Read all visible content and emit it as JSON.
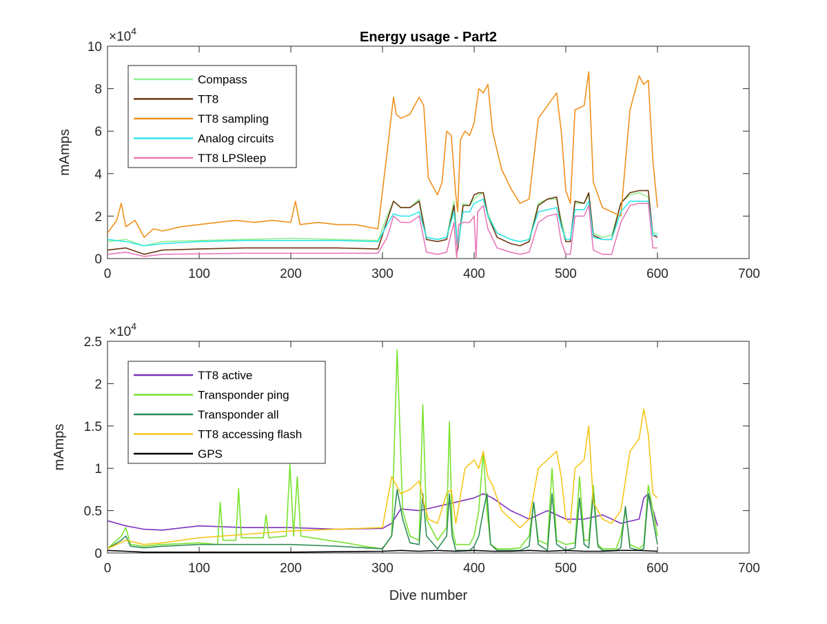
{
  "chart_data": [
    {
      "type": "line",
      "title": "Energy usage - Part2",
      "xlabel": "",
      "ylabel": "mAmps",
      "exponent_label": "×10",
      "exponent_power": "4",
      "xlim": [
        0,
        700
      ],
      "ylim": [
        0,
        100000
      ],
      "x_ticks": [
        "0",
        "100",
        "200",
        "300",
        "400",
        "500",
        "600",
        "700"
      ],
      "y_ticks": [
        "0",
        "2",
        "4",
        "6",
        "8",
        "10"
      ],
      "legend_position": "top-left",
      "series": [
        {
          "name": "Compass",
          "color": "#90ee90",
          "x": [
            0,
            20,
            40,
            60,
            100,
            150,
            200,
            250,
            295,
            305,
            312,
            320,
            330,
            340,
            348,
            360,
            370,
            378,
            382,
            388,
            395,
            400,
            405,
            410,
            415,
            425,
            440,
            450,
            460,
            470,
            480,
            490,
            495,
            500,
            505,
            510,
            520,
            525,
            530,
            540,
            550,
            560,
            570,
            580,
            590,
            595,
            600
          ],
          "y": [
            8000,
            9000,
            6000,
            8000,
            8500,
            9000,
            9500,
            9000,
            8500,
            20000,
            27000,
            24000,
            24000,
            28000,
            10000,
            9000,
            10000,
            27000,
            5000,
            26000,
            25000,
            28000,
            30000,
            31000,
            21000,
            12000,
            9000,
            8000,
            9000,
            26000,
            28000,
            28000,
            18000,
            9000,
            9000,
            26000,
            26000,
            30000,
            12000,
            10000,
            11000,
            26000,
            30000,
            31000,
            29000,
            12000,
            12000
          ]
        },
        {
          "name": "TT8",
          "color": "#6b3510",
          "x": [
            0,
            20,
            40,
            60,
            100,
            150,
            200,
            250,
            295,
            305,
            312,
            320,
            330,
            340,
            348,
            360,
            370,
            378,
            382,
            388,
            395,
            400,
            405,
            410,
            415,
            425,
            440,
            450,
            460,
            470,
            480,
            490,
            495,
            500,
            505,
            510,
            520,
            525,
            530,
            540,
            550,
            560,
            570,
            580,
            590,
            595,
            600
          ],
          "y": [
            4000,
            5000,
            2000,
            4000,
            4500,
            5000,
            5000,
            5000,
            4500,
            18000,
            27000,
            24000,
            24000,
            27000,
            9000,
            8000,
            9000,
            25000,
            4000,
            25000,
            25000,
            30000,
            31000,
            31000,
            20000,
            10000,
            7000,
            6000,
            8000,
            25000,
            28000,
            29000,
            16000,
            8000,
            8000,
            27000,
            26000,
            31000,
            11000,
            9000,
            9000,
            26000,
            31000,
            32000,
            32000,
            11000,
            10000
          ]
        },
        {
          "name": "TT8 sampling",
          "color": "#f0901a",
          "x": [
            0,
            10,
            15,
            20,
            30,
            40,
            50,
            60,
            80,
            100,
            120,
            140,
            160,
            180,
            200,
            205,
            210,
            230,
            250,
            270,
            295,
            305,
            312,
            315,
            320,
            330,
            340,
            345,
            350,
            360,
            365,
            370,
            375,
            380,
            382,
            385,
            390,
            395,
            400,
            405,
            410,
            415,
            420,
            430,
            440,
            450,
            460,
            470,
            480,
            490,
            495,
            500,
            505,
            510,
            520,
            525,
            530,
            540,
            550,
            560,
            570,
            580,
            585,
            590,
            595,
            600
          ],
          "y": [
            12000,
            18000,
            26000,
            15000,
            18000,
            10000,
            14000,
            13000,
            15000,
            16000,
            17000,
            18000,
            17000,
            18000,
            17000,
            27000,
            16000,
            17000,
            16000,
            16000,
            14000,
            50000,
            76000,
            68000,
            66000,
            68000,
            76000,
            72000,
            38000,
            30000,
            36000,
            60000,
            58000,
            30000,
            22000,
            56000,
            60000,
            58000,
            64000,
            80000,
            78000,
            82000,
            60000,
            42000,
            33000,
            26000,
            28000,
            66000,
            72000,
            78000,
            60000,
            32000,
            26000,
            70000,
            72000,
            88000,
            36000,
            24000,
            22000,
            20000,
            70000,
            86000,
            82000,
            84000,
            46000,
            24000
          ]
        },
        {
          "name": "Analog circuits",
          "color": "#2fe6ea",
          "x": [
            0,
            20,
            40,
            60,
            100,
            150,
            200,
            250,
            295,
            305,
            312,
            320,
            330,
            340,
            348,
            360,
            370,
            378,
            382,
            388,
            395,
            400,
            405,
            410,
            415,
            425,
            440,
            450,
            460,
            470,
            480,
            490,
            495,
            500,
            505,
            510,
            520,
            525,
            530,
            540,
            550,
            560,
            570,
            580,
            590,
            595,
            600
          ],
          "y": [
            9000,
            8000,
            6000,
            7000,
            8000,
            8500,
            8500,
            8500,
            8000,
            16000,
            21000,
            20000,
            20000,
            22000,
            10000,
            9000,
            10000,
            22000,
            6000,
            22000,
            22000,
            26000,
            27000,
            28000,
            20000,
            12000,
            9000,
            8000,
            9000,
            22000,
            23000,
            24000,
            15000,
            9000,
            9000,
            23000,
            23000,
            27000,
            10000,
            9000,
            9000,
            22000,
            27000,
            27000,
            27000,
            11000,
            11000
          ]
        },
        {
          "name": "TT8 LPSleep",
          "color": "#e878b8",
          "x": [
            0,
            20,
            40,
            60,
            100,
            150,
            200,
            250,
            295,
            305,
            312,
            320,
            330,
            340,
            348,
            360,
            370,
            378,
            381,
            383,
            388,
            395,
            400,
            402,
            404,
            410,
            415,
            425,
            440,
            450,
            460,
            470,
            480,
            490,
            495,
            500,
            505,
            510,
            520,
            525,
            530,
            540,
            550,
            560,
            570,
            580,
            590,
            595,
            600
          ],
          "y": [
            2000,
            3000,
            1000,
            2000,
            2200,
            2500,
            2500,
            2500,
            2500,
            10000,
            20000,
            17000,
            17000,
            20000,
            3000,
            2000,
            3000,
            17000,
            0,
            16000,
            17000,
            17000,
            20000,
            0,
            22000,
            25000,
            14000,
            5000,
            3000,
            2000,
            3000,
            17000,
            20000,
            21000,
            8000,
            2000,
            2000,
            20000,
            20000,
            25000,
            4000,
            2000,
            2000,
            17000,
            25000,
            26000,
            26000,
            5000,
            5000
          ]
        }
      ]
    },
    {
      "type": "line",
      "title": "",
      "xlabel": "Dive number",
      "ylabel": "mAmps",
      "exponent_label": "×10",
      "exponent_power": "4",
      "xlim": [
        0,
        700
      ],
      "ylim": [
        0,
        25000
      ],
      "x_ticks": [
        "0",
        "100",
        "200",
        "300",
        "400",
        "500",
        "600",
        "700"
      ],
      "y_ticks": [
        "0",
        "0.5",
        "1",
        "1.5",
        "2",
        "2.5"
      ],
      "legend_position": "top-left",
      "series": [
        {
          "name": "TT8 active",
          "color": "#7b2fbe",
          "x": [
            0,
            20,
            40,
            60,
            100,
            150,
            200,
            250,
            300,
            310,
            320,
            340,
            360,
            380,
            400,
            410,
            420,
            440,
            450,
            460,
            470,
            480,
            500,
            520,
            540,
            560,
            580,
            585,
            590,
            600
          ],
          "y": [
            3800,
            3200,
            2800,
            2700,
            3200,
            3000,
            3000,
            2800,
            2900,
            3500,
            5200,
            5000,
            5500,
            6000,
            6500,
            7000,
            6500,
            5000,
            4500,
            4000,
            4500,
            5000,
            4000,
            4000,
            4500,
            3500,
            4000,
            6500,
            7000,
            3200
          ]
        },
        {
          "name": "Transponder ping",
          "color": "#76e22b",
          "x": [
            0,
            15,
            20,
            25,
            40,
            60,
            100,
            120,
            123,
            126,
            140,
            143,
            146,
            170,
            173,
            176,
            195,
            199,
            203,
            207,
            211,
            240,
            260,
            280,
            300,
            310,
            316,
            322,
            330,
            340,
            344,
            348,
            360,
            370,
            373,
            376,
            380,
            395,
            400,
            405,
            410,
            414,
            418,
            425,
            440,
            450,
            460,
            465,
            470,
            480,
            485,
            490,
            500,
            510,
            515,
            520,
            525,
            530,
            535,
            540,
            555,
            560,
            565,
            570,
            580,
            585,
            590,
            600
          ],
          "y": [
            500,
            2000,
            3000,
            1000,
            800,
            1000,
            1200,
            1000,
            6000,
            1500,
            1500,
            7600,
            1800,
            1800,
            4500,
            1800,
            2000,
            10500,
            2000,
            9000,
            2000,
            1500,
            1200,
            800,
            500,
            2000,
            24000,
            5000,
            2000,
            1500,
            17500,
            4000,
            1500,
            3000,
            15500,
            3000,
            1000,
            1000,
            2000,
            5000,
            12000,
            5000,
            1000,
            500,
            500,
            600,
            2000,
            6000,
            1500,
            1000,
            10000,
            1500,
            1000,
            1200,
            9000,
            1500,
            1500,
            8000,
            1000,
            500,
            500,
            2000,
            5000,
            1000,
            500,
            1000,
            8000,
            2000
          ]
        },
        {
          "name": "Transponder all",
          "color": "#2e8b57",
          "x": [
            0,
            15,
            20,
            25,
            40,
            60,
            100,
            150,
            200,
            250,
            300,
            310,
            316,
            322,
            330,
            340,
            344,
            348,
            360,
            370,
            373,
            376,
            380,
            395,
            400,
            405,
            410,
            414,
            418,
            425,
            440,
            450,
            460,
            465,
            470,
            480,
            485,
            490,
            500,
            510,
            515,
            520,
            525,
            530,
            535,
            540,
            555,
            560,
            565,
            570,
            580,
            585,
            590,
            600
          ],
          "y": [
            500,
            1500,
            2000,
            800,
            600,
            800,
            1000,
            1000,
            1000,
            800,
            500,
            2000,
            7500,
            4000,
            1200,
            1000,
            7000,
            2000,
            500,
            2000,
            7000,
            2000,
            300,
            300,
            800,
            2000,
            5000,
            7000,
            1000,
            300,
            300,
            300,
            800,
            6000,
            1000,
            300,
            7000,
            1000,
            300,
            600,
            6500,
            1000,
            600,
            7000,
            800,
            300,
            300,
            600,
            5500,
            600,
            300,
            500,
            7000,
            1000
          ]
        },
        {
          "name": "TT8 accessing flash",
          "color": "#f5c518",
          "x": [
            0,
            20,
            40,
            60,
            100,
            150,
            200,
            250,
            300,
            305,
            310,
            315,
            320,
            330,
            340,
            345,
            350,
            360,
            370,
            375,
            380,
            390,
            400,
            405,
            410,
            415,
            420,
            430,
            440,
            450,
            460,
            470,
            480,
            490,
            495,
            500,
            505,
            510,
            520,
            525,
            530,
            540,
            550,
            560,
            570,
            580,
            585,
            590,
            595,
            600
          ],
          "y": [
            500,
            1500,
            1000,
            1200,
            1800,
            2200,
            2600,
            2800,
            3000,
            6000,
            9000,
            8000,
            7000,
            7500,
            8500,
            6000,
            4000,
            3500,
            7000,
            7500,
            3500,
            10000,
            11000,
            10000,
            12000,
            9000,
            8000,
            5000,
            4000,
            3000,
            4000,
            10000,
            11000,
            12000,
            9000,
            4000,
            3500,
            10000,
            11000,
            15000,
            6000,
            4000,
            3500,
            5000,
            12000,
            13500,
            17000,
            14000,
            7000,
            6500
          ]
        },
        {
          "name": "GPS",
          "color": "#000000",
          "x": [
            0,
            20,
            40,
            100,
            200,
            300,
            320,
            340,
            360,
            380,
            400,
            420,
            440,
            460,
            480,
            500,
            520,
            540,
            560,
            580,
            600
          ],
          "y": [
            300,
            200,
            100,
            100,
            100,
            200,
            300,
            200,
            300,
            200,
            300,
            200,
            200,
            300,
            200,
            300,
            200,
            200,
            300,
            300,
            200
          ]
        }
      ]
    }
  ]
}
